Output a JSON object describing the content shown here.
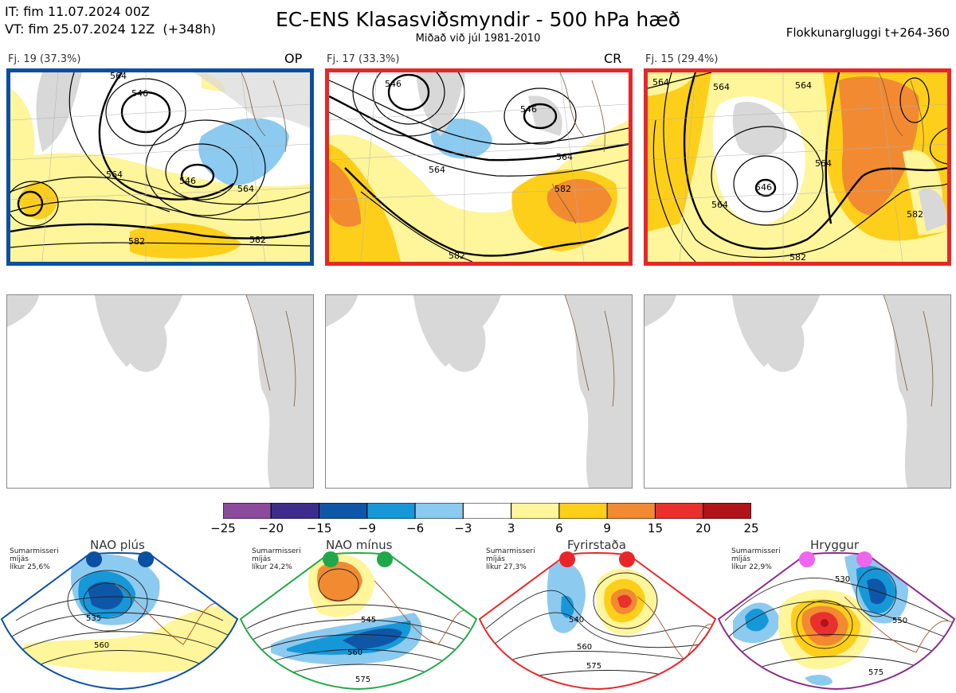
{
  "header": {
    "it_line": "IT: fim 11.07.2024 00Z",
    "vt_line": "VT: fim 25.07.2024 12Z  (+348h)",
    "title": "EC-ENS Klasasviðsmyndir - 500 hPa hæð",
    "subtitle": "Miðað við júl 1981-2010",
    "window": "Flokkunargluggi t+264-360"
  },
  "clusters": [
    {
      "label": "Fj. 19 (37.3%)",
      "tag": "OP",
      "border_color": "#0b4fa0",
      "contours": [
        "564",
        "546",
        "546",
        "564",
        "582",
        "582",
        "564"
      ]
    },
    {
      "label": "Fj. 17 (33.3%)",
      "tag": "CR",
      "border_color": "#e8262a",
      "contours": [
        "546",
        "546",
        "564",
        "582",
        "582",
        "564"
      ]
    },
    {
      "label": "Fj. 15 (29.4%)",
      "tag": "",
      "border_color": "#e8262a",
      "contours": [
        "564",
        "564",
        "546",
        "564",
        "564",
        "582",
        "582",
        "564"
      ]
    }
  ],
  "colorbar": {
    "colors": [
      "#8c4a9c",
      "#3d2c8c",
      "#0e57a8",
      "#1698d8",
      "#8ccaf0",
      "#ffffff",
      "#fff59a",
      "#fecf1a",
      "#f28a32",
      "#e8312d",
      "#b1131a"
    ],
    "labels": [
      "−25",
      "−20",
      "−15",
      "−9",
      "−6",
      "−3",
      "3",
      "6",
      "9",
      "15",
      "20",
      "25"
    ]
  },
  "regimes": [
    {
      "title": "NAO plús",
      "desc": "Sumarmisseri\nmíjás\nlíkur 25,6%",
      "dot_color": "#0b4fa0",
      "border_color": "#0b4fa0",
      "contours": [
        "535",
        "560"
      ]
    },
    {
      "title": "NAO mínus",
      "desc": "Sumarmisseri\nmíjás\nlíkur 24,2%",
      "dot_color": "#1fa84a",
      "border_color": "#23a84a",
      "contours": [
        "545",
        "560",
        "575"
      ]
    },
    {
      "title": "Fyrirstaða",
      "desc": "Sumarmisseri\nmíjás\nlíkur 27,3%",
      "dot_color": "#e8262a",
      "border_color": "#e8262a",
      "contours": [
        "540",
        "560",
        "575"
      ]
    },
    {
      "title": "Hryggur",
      "desc": "Sumarmisseri\nmíjás\nlíkur 22,9%",
      "dot_color": "#ee66ee",
      "border_color": "#8c2a8c",
      "contours": [
        "530",
        "550",
        "575"
      ]
    }
  ]
}
